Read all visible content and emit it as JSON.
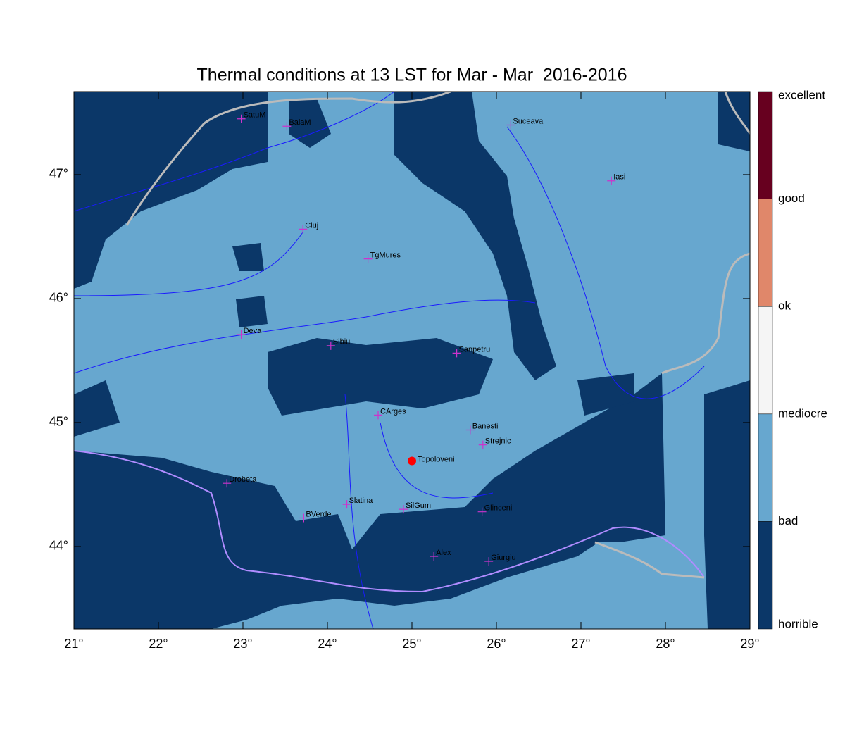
{
  "title": "Thermal conditions at 13 LST for Mar - Mar  2016-2016",
  "map": {
    "xlim": [
      21,
      29
    ],
    "ylim": [
      43.335,
      47.67
    ],
    "xticks": [
      {
        "value": 21,
        "label": "21°"
      },
      {
        "value": 22,
        "label": "22°"
      },
      {
        "value": 23,
        "label": "23°"
      },
      {
        "value": 24,
        "label": "24°"
      },
      {
        "value": 25,
        "label": "25°"
      },
      {
        "value": 26,
        "label": "26°"
      },
      {
        "value": 27,
        "label": "27°"
      },
      {
        "value": 28,
        "label": "28°"
      },
      {
        "value": 29,
        "label": "29°"
      }
    ],
    "yticks": [
      {
        "value": 44,
        "label": "44°"
      },
      {
        "value": 45,
        "label": "45°"
      },
      {
        "value": 46,
        "label": "46°"
      },
      {
        "value": 47,
        "label": "47°"
      }
    ],
    "cities": [
      {
        "name": "SatuM",
        "lon": 22.98,
        "lat": 47.45
      },
      {
        "name": "BaiaM",
        "lon": 23.52,
        "lat": 47.39
      },
      {
        "name": "Suceava",
        "lon": 26.17,
        "lat": 47.4
      },
      {
        "name": "Iasi",
        "lon": 27.36,
        "lat": 46.95
      },
      {
        "name": "Cluj",
        "lon": 23.71,
        "lat": 46.56
      },
      {
        "name": "TgMures",
        "lon": 24.48,
        "lat": 46.32
      },
      {
        "name": "Deva",
        "lon": 22.98,
        "lat": 45.71
      },
      {
        "name": "Sibiu",
        "lon": 24.04,
        "lat": 45.62
      },
      {
        "name": "Sanpetru",
        "lon": 25.53,
        "lat": 45.56
      },
      {
        "name": "CArges",
        "lon": 24.6,
        "lat": 45.06
      },
      {
        "name": "Banesti",
        "lon": 25.69,
        "lat": 44.94
      },
      {
        "name": "Strejnic",
        "lon": 25.84,
        "lat": 44.82
      },
      {
        "name": "Drobeta",
        "lon": 22.81,
        "lat": 44.51
      },
      {
        "name": "Slatina",
        "lon": 24.23,
        "lat": 44.34
      },
      {
        "name": "SilGum",
        "lon": 24.9,
        "lat": 44.3
      },
      {
        "name": "Glinceni",
        "lon": 25.83,
        "lat": 44.28
      },
      {
        "name": "BVerde",
        "lon": 23.72,
        "lat": 44.23
      },
      {
        "name": "Alex",
        "lon": 25.26,
        "lat": 43.92
      },
      {
        "name": "Giurgiu",
        "lon": 25.91,
        "lat": 43.88
      }
    ],
    "highlight": {
      "name": "Topoloveni",
      "lon": 25.0,
      "lat": 44.69,
      "color": "#ff0000"
    },
    "city_color": "#cc33cc"
  },
  "colorbar": {
    "labels": [
      "horrible",
      "bad",
      "mediocre",
      "ok",
      "good",
      "excellent"
    ],
    "colors": [
      "#0b3768",
      "#67a7cf",
      "#f5f5f5",
      "#e0876a",
      "#67001f"
    ]
  }
}
